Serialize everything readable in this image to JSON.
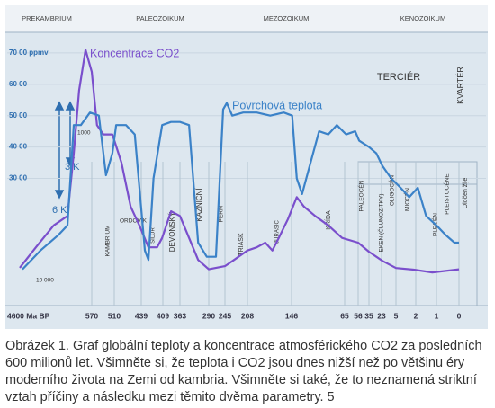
{
  "chart_data": {
    "type": "line",
    "eras": [
      "PREKAMBRIUM",
      "PALEOZOIKUM",
      "MEZOZOIKUM",
      "KENOZOIKUM"
    ],
    "periods": [
      "KAMBRIUM",
      "ORDOVIK",
      "SILUR",
      "DEVONSKÝ",
      "KAZNIČNÍ",
      "PERM",
      "TRIASK",
      "JURASIC",
      "KŘÍDA",
      "TERCIÉR",
      "KVARTÉR",
      "PALEOCÉN",
      "EKEN (ČLUNOZITKY)",
      "OLIGOCÉN",
      "MIOCÉN",
      "PLECÉN",
      "PLEISTOCÉNE",
      "Oločen žije"
    ],
    "annotations": [
      "3 K",
      "6 K",
      "1000",
      "10 000"
    ],
    "xlim": [
      4600,
      0
    ],
    "xticks": [
      {
        "value": 4600,
        "label": "4600 Ma BP"
      },
      570,
      510,
      439,
      409,
      363,
      290,
      245,
      208,
      146,
      65,
      56,
      35,
      23,
      5,
      2,
      1,
      0
    ],
    "ylim": [
      -1000,
      7600
    ],
    "yticks": [
      {
        "value": 7000,
        "label": "70 00 ppmv"
      },
      {
        "value": 6000,
        "label": "60 00"
      },
      {
        "value": 5000,
        "label": "50 00"
      },
      {
        "value": 4000,
        "label": "40 00"
      },
      {
        "value": 3000,
        "label": "30 00"
      }
    ],
    "grid": true,
    "series": [
      {
        "name": "Koncentrace CO2",
        "color": "#7a4fcc",
        "x": [
          4600,
          3700,
          2700,
          1930,
          1580,
          1280,
          920,
          570,
          556,
          539,
          515,
          491,
          467,
          444,
          429,
          417,
          410,
          387,
          363,
          340,
          317,
          290,
          245,
          230,
          208,
          195,
          183,
          173,
          164,
          151,
          138,
          127,
          110,
          90,
          69,
          56,
          35,
          22,
          5,
          2.3,
          1.2,
          0
        ],
        "values": [
          150,
          800,
          1500,
          1800,
          3800,
          5800,
          7100,
          6400,
          4700,
          4400,
          4400,
          3500,
          2100,
          1500,
          800,
          800,
          1100,
          1950,
          1800,
          1100,
          400,
          100,
          200,
          400,
          700,
          800,
          950,
          700,
          1100,
          1700,
          2400,
          2100,
          1800,
          1500,
          1100,
          950,
          660,
          370,
          140,
          90,
          0,
          100
        ]
      },
      {
        "name": "Povrchová teplota",
        "color": "#3b82c8",
        "x": [
          4450,
          3440,
          2430,
          1930,
          1580,
          1180,
          670,
          551,
          532,
          515,
          505,
          479,
          456,
          434,
          429,
          422,
          410,
          387,
          363,
          340,
          317,
          295,
          270,
          250,
          242,
          233,
          215,
          195,
          176,
          157,
          145,
          138,
          130,
          117,
          104,
          90,
          77,
          64,
          58,
          54,
          35,
          28,
          22,
          11,
          4.3,
          3,
          1.9,
          1.5,
          1,
          0.6,
          0.2,
          0
        ],
        "values": [
          100,
          700,
          1200,
          1500,
          4700,
          4700,
          5100,
          5000,
          3100,
          3800,
          4700,
          4700,
          4400,
          700,
          400,
          3000,
          4700,
          4800,
          4800,
          4700,
          950,
          500,
          500,
          5200,
          5400,
          5000,
          5100,
          5100,
          5000,
          5100,
          5000,
          3000,
          2500,
          3500,
          4500,
          4400,
          4700,
          4400,
          4500,
          4200,
          4000,
          3800,
          3400,
          3000,
          2700,
          2400,
          2700,
          1800,
          1500,
          1200,
          950,
          950
        ]
      }
    ]
  },
  "caption": "Obrázek 1. Graf globální teploty a koncentrace atmosférického CO2 za posledních 600 milionů let. Všimněte si, že teplota i CO2 jsou dnes nižší než po většinu éry moderního života na Zemi od kambria. Všimněte si také, že to neznamená striktní vztah příčiny a následku mezi těmito dvěma parametry. 5"
}
